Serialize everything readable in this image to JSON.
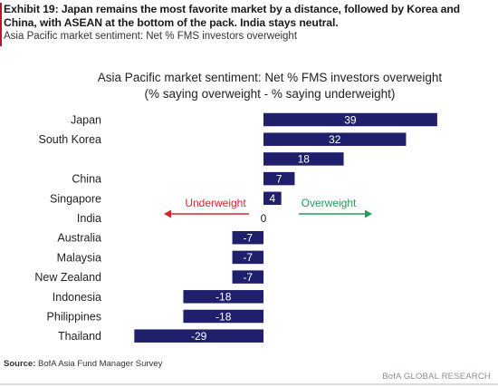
{
  "header": {
    "title": "Exhibit 19: Japan remains the most favorite market by a distance, followed by Korea and China, with ASEAN at the bottom of the pack. India stays neutral.",
    "subtitle": "Asia Pacific market sentiment: Net % FMS investors overweight"
  },
  "chart_data": {
    "type": "bar",
    "orientation": "horizontal",
    "title": "Asia Pacific market sentiment: Net % FMS investors overweight",
    "subtitle": "(% saying overweight - % saying underweight)",
    "categories": [
      "Japan",
      "South Korea",
      "",
      "China",
      "Singapore",
      "India",
      "Australia",
      "Malaysia",
      "New Zealand",
      "Indonesia",
      "Philippines",
      "Thailand"
    ],
    "values": [
      39,
      32,
      18,
      7,
      4,
      0,
      -7,
      -7,
      -7,
      -18,
      -18,
      -29
    ],
    "xlim": [
      -29,
      39
    ],
    "grid": false,
    "bar_color": "#1f1f6b",
    "annotations": {
      "underweight": {
        "text": "Underweight",
        "color": "#d6262e"
      },
      "overweight": {
        "text": "Overweight",
        "color": "#1fa05a"
      }
    }
  },
  "footer": {
    "source_label": "Source:",
    "source_text": " BofA Asia Fund Manager Survey",
    "brand": "BofA GLOBAL RESEARCH"
  }
}
